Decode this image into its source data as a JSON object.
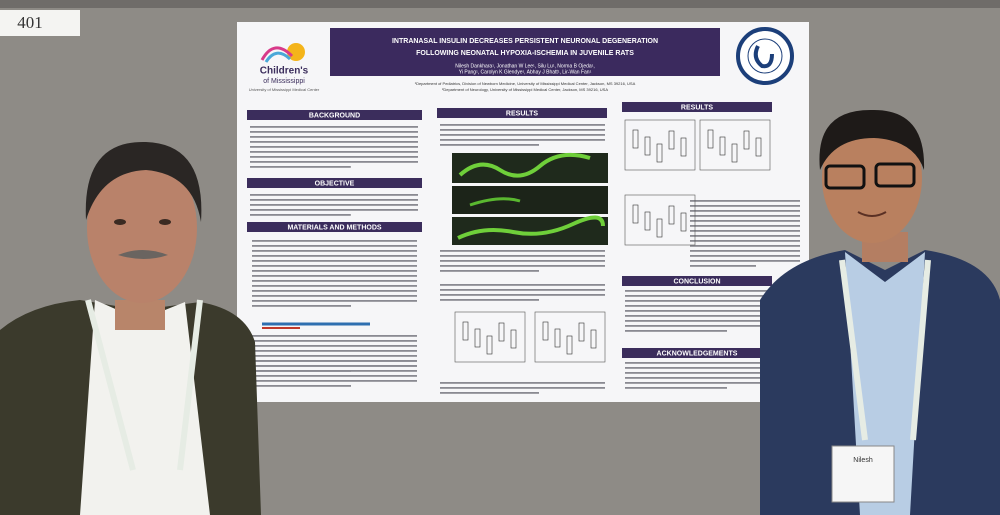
{
  "board_number": "401",
  "badge_name": "Nilesh",
  "poster": {
    "title": [
      "INTRANASAL INSULIN DECREASES PERSISTENT NEURONAL DEGENERATION",
      "FOLLOWING NEONATAL HYPOXIA-ISCHEMIA IN JUVENILE RATS"
    ],
    "authors": [
      "Nilesh Dankhara¹, Jonathan W Lee¹, Silu Lu¹, Norma B Ojeda¹,",
      "Yi Pang¹, Carolyn K Glendye¹, Abhay J Bhatt¹, Lir-Wan Fan¹"
    ],
    "affiliations": [
      "¹Department of Pediatrics, Division of Newborn Medicine, University of Mississippi Medical Center, Jackson, MS 39216, USA",
      "²Department of Neurology, University of Mississippi Medical Center, Jackson, MS 39216, USA"
    ],
    "logo": [
      "Children's",
      "of Mississippi",
      "University of Mississippi Medical Center"
    ],
    "sections": [
      "BACKGROUND",
      "OBJECTIVE",
      "MATERIALS AND METHODS",
      "RESULTS",
      "RESULTS",
      "CONCLUSION",
      "ACKNOWLEDGEMENTS"
    ]
  }
}
